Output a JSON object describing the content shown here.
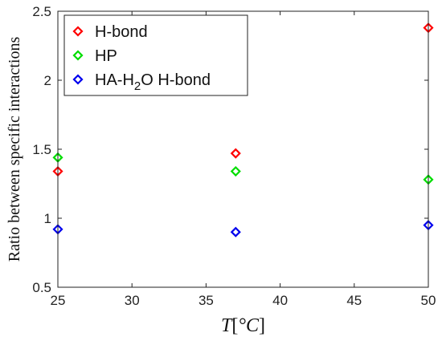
{
  "chart_data": {
    "type": "scatter",
    "title": "",
    "xlabel": "T[°C]",
    "xlabel_parts": {
      "var": "T",
      "open": "[",
      "unit": "°C",
      "close": "]"
    },
    "ylabel": "Ratio between specific interactions",
    "xlim": [
      25,
      50
    ],
    "ylim": [
      0.5,
      2.5
    ],
    "xticks": [
      25,
      30,
      35,
      40,
      45,
      50
    ],
    "yticks": [
      0.5,
      1,
      1.5,
      2,
      2.5
    ],
    "ytick_labels": [
      "0.5",
      "1",
      "1.5",
      "2",
      "2.5"
    ],
    "grid": false,
    "legend_position": "top-left",
    "marker": "diamond-open",
    "series": [
      {
        "name": "H-bond",
        "color": "#ff0000",
        "x": [
          25,
          37,
          50
        ],
        "y": [
          1.34,
          1.47,
          2.38
        ]
      },
      {
        "name": "HP",
        "color": "#00dd00",
        "x": [
          25,
          37,
          50
        ],
        "y": [
          1.44,
          1.34,
          1.28
        ]
      },
      {
        "name": "HA-H2O H-bond",
        "name_parts": {
          "pre": "HA-H",
          "sub": "2",
          "post": "O H-bond"
        },
        "color": "#0000ee",
        "x": [
          25,
          37,
          50
        ],
        "y": [
          0.92,
          0.9,
          0.95
        ]
      }
    ]
  }
}
